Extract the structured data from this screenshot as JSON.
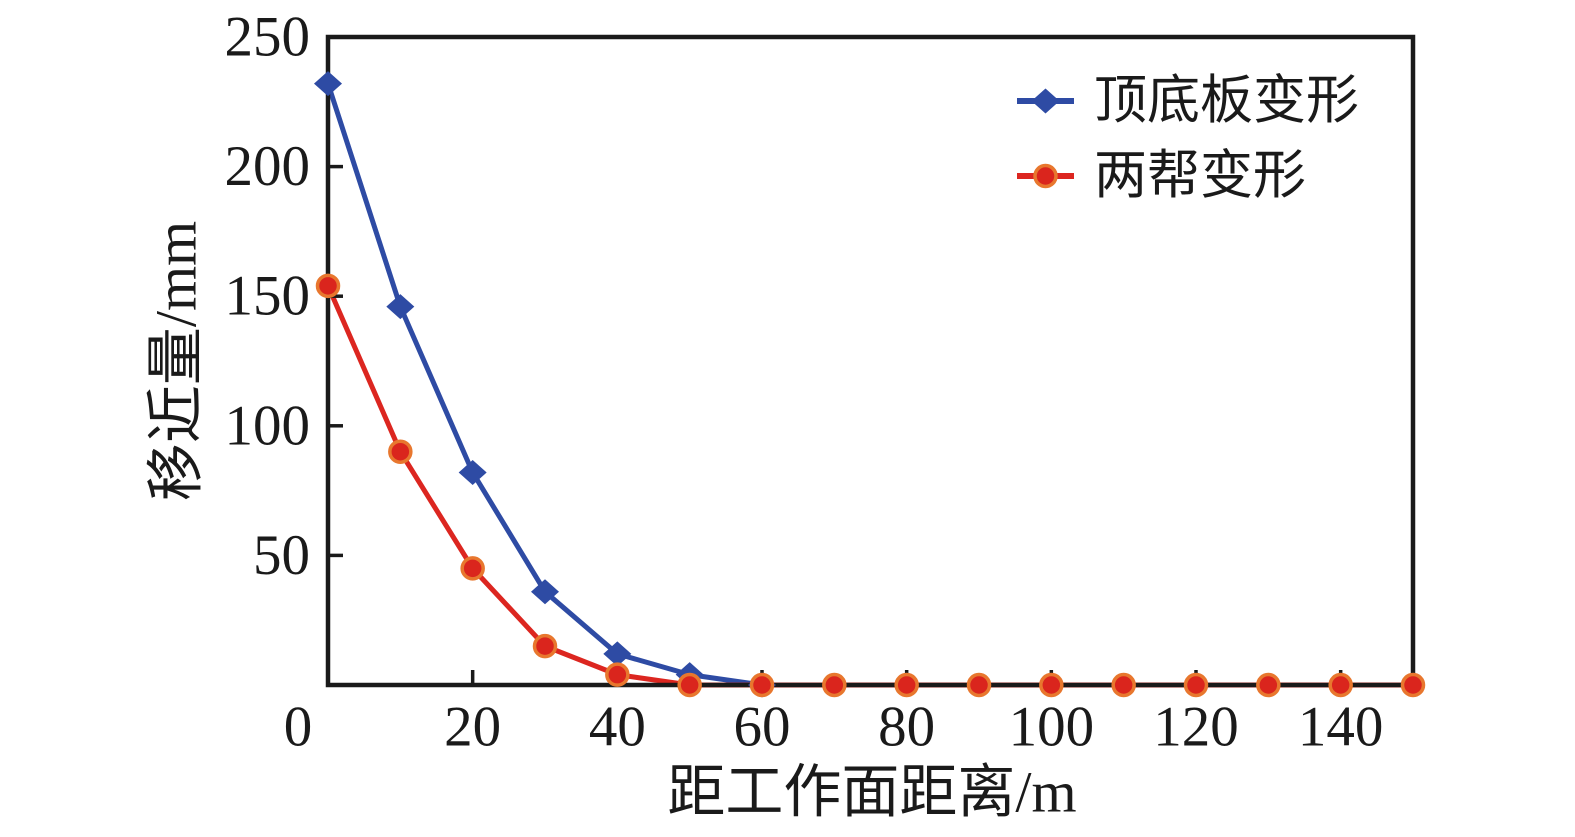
{
  "chart_data": {
    "type": "line",
    "title": "",
    "xlabel": "距工作面距离/m",
    "ylabel": "移近量/mm",
    "xlim": [
      0,
      150
    ],
    "ylim": [
      0,
      250
    ],
    "x_ticks": [
      0,
      20,
      40,
      60,
      80,
      100,
      120,
      140
    ],
    "y_ticks": [
      50,
      100,
      150,
      200,
      250
    ],
    "grid": false,
    "legend_position": "top-right-inside",
    "frame": "full-box",
    "colors": {
      "axis": "#1a1a1a",
      "background": "#ffffff",
      "series_blue": "#2E4BA4",
      "series_red": "#DC2620",
      "red_marker_edge": "#E8772E"
    },
    "series": [
      {
        "name": "顶底板变形",
        "color": "#2E4BA4",
        "marker": "diamond",
        "marker_color": "#2E4BA4",
        "x": [
          0,
          10,
          20,
          30,
          40,
          50,
          60
        ],
        "values": [
          232,
          146,
          82,
          36,
          12,
          4,
          0
        ]
      },
      {
        "name": "两帮变形",
        "color": "#DC2620",
        "marker": "circle",
        "marker_color": "#DA251D",
        "marker_edge_color": "#E8772E",
        "x": [
          0,
          10,
          20,
          30,
          40,
          50,
          60,
          70,
          80,
          90,
          100,
          110,
          120,
          130,
          140,
          150
        ],
        "values": [
          154,
          90,
          45,
          15,
          4,
          0,
          0,
          0,
          0,
          0,
          0,
          0,
          0,
          0,
          0,
          0
        ]
      }
    ]
  }
}
